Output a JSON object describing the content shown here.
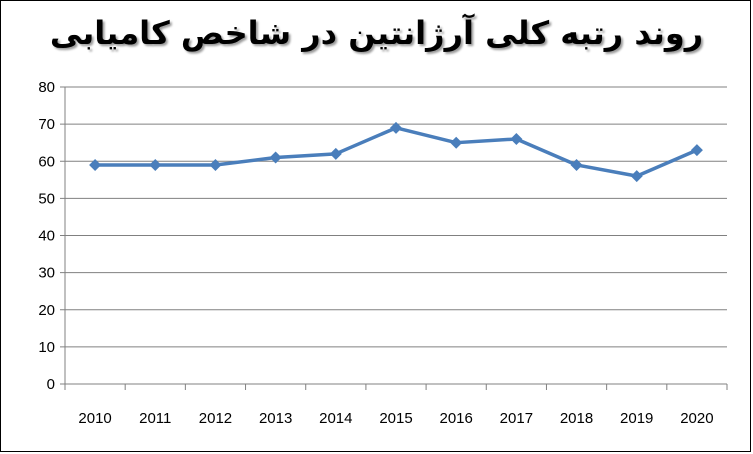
{
  "chart_data": {
    "type": "line",
    "title": "روند رتبه کلی آرژانتین در شاخص کامیابی",
    "xlabel": "",
    "ylabel": "",
    "categories": [
      "2010",
      "2011",
      "2012",
      "2013",
      "2014",
      "2015",
      "2016",
      "2017",
      "2018",
      "2019",
      "2020"
    ],
    "series": [
      {
        "values": [
          59,
          59,
          59,
          61,
          62,
          69,
          65,
          66,
          59,
          56,
          63
        ]
      }
    ],
    "ylim": [
      0,
      80
    ],
    "yticks": [
      "0",
      "10",
      "20",
      "30",
      "40",
      "50",
      "60",
      "70",
      "80"
    ],
    "grid": true,
    "legend": "none",
    "line_color": "#4a7ebb"
  }
}
